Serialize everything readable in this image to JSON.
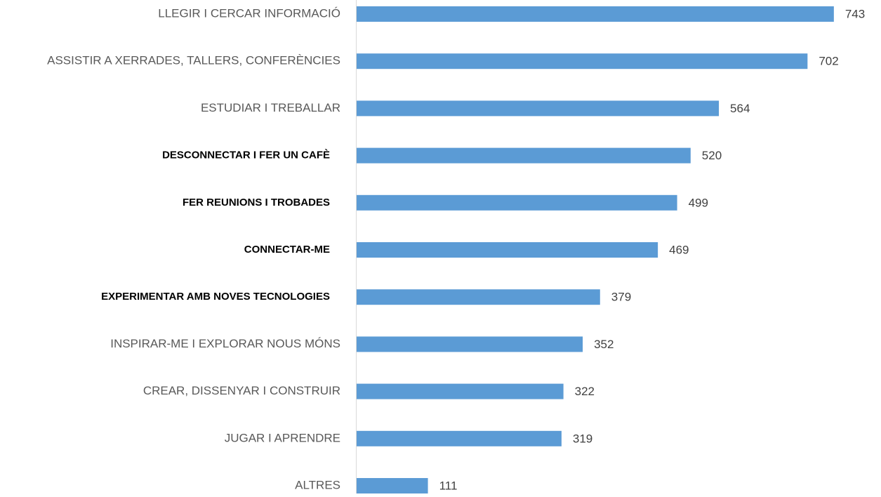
{
  "chart_data": {
    "type": "hbar",
    "categories": [
      "LLEGIR I CERCAR INFORMACIÓ",
      "ASSISTIR A XERRADES, TALLERS, CONFERÈNCIES",
      "ESTUDIAR I TREBALLAR",
      "DESCONNECTAR I FER UN CAFÈ",
      "FER REUNIONS I TROBADES",
      "CONNECTAR-ME",
      "EXPERIMENTAR AMB NOVES TECNOLOGIES",
      "INSPIRAR-ME I EXPLORAR NOUS MÓNS",
      "CREAR, DISSENYAR I CONSTRUIR",
      "JUGAR I APRENDRE",
      "ALTRES"
    ],
    "values": [
      743,
      702,
      564,
      520,
      499,
      469,
      379,
      352,
      322,
      319,
      111
    ],
    "label_weights": [
      "normal",
      "normal",
      "normal",
      "bold",
      "bold",
      "bold",
      "bold",
      "normal",
      "normal",
      "normal",
      "normal"
    ],
    "color": "#5b9bd5"
  }
}
